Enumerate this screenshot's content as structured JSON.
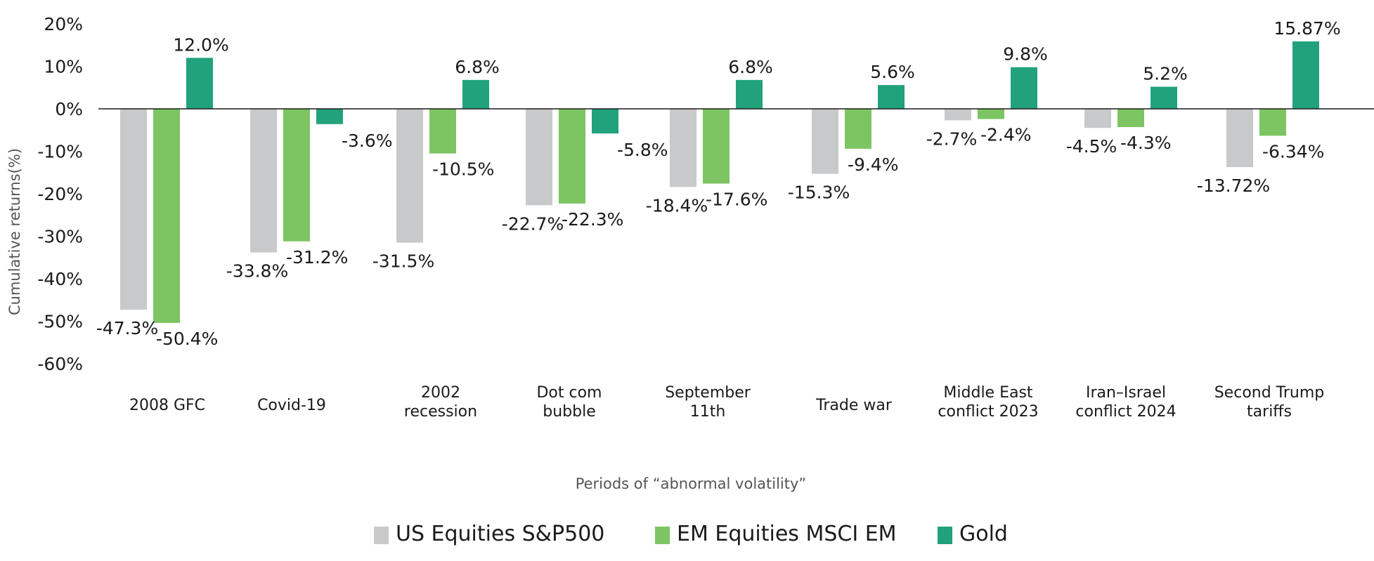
{
  "chart_data": {
    "type": "bar",
    "xlabel": "Periods of “abnormal volatility”",
    "ylabel": "Cumulative returns(%)",
    "ylim": [
      -60,
      20
    ],
    "yticks": [
      20,
      10,
      0,
      -10,
      -20,
      -30,
      -40,
      -50,
      -60
    ],
    "ytick_labels": [
      "20%",
      "10%",
      "0%",
      "-10%",
      "-20%",
      "-30%",
      "-40%",
      "-50%",
      "-60%"
    ],
    "grid": false,
    "legend_position": "bottom",
    "categories": [
      [
        "2008 GFC"
      ],
      [
        "Covid-19"
      ],
      [
        "2002",
        "recession"
      ],
      [
        "Dot com",
        "bubble"
      ],
      [
        "September",
        "11th"
      ],
      [
        "Trade war"
      ],
      [
        "Middle East",
        "conflict 2023"
      ],
      [
        "Iran–Israel",
        "conflict 2024"
      ],
      [
        "Second Trump",
        "tariffs"
      ]
    ],
    "series": [
      {
        "name": "US Equities S&P500",
        "color": "#c8c9cb",
        "values": [
          -47.3,
          -33.8,
          -31.5,
          -22.7,
          -18.4,
          -15.3,
          -2.7,
          -4.5,
          -13.72
        ],
        "labels": [
          "-47.3%",
          "-33.8%",
          "-31.5%",
          "-22.7%",
          "-18.4%",
          "-15.3%",
          "-2.7%",
          "-4.5%",
          "-13.72%"
        ]
      },
      {
        "name": "EM Equities MSCI EM",
        "color": "#7dc462",
        "values": [
          -50.4,
          -31.2,
          -10.5,
          -22.3,
          -17.6,
          -9.4,
          -2.4,
          -4.3,
          -6.34
        ],
        "labels": [
          "-50.4%",
          "-31.2%",
          "-10.5%",
          "-22.3%",
          "-17.6%",
          "-9.4%",
          "-2.4%",
          "-4.3%",
          "-6.34%"
        ]
      },
      {
        "name": "Gold",
        "color": "#21a27d",
        "values": [
          12.0,
          -3.6,
          6.8,
          -5.8,
          6.8,
          5.6,
          9.8,
          5.2,
          15.87
        ],
        "labels": [
          "12.0%",
          "-3.6%",
          "6.8%",
          "-5.8%",
          "6.8%",
          "5.6%",
          "9.8%",
          "5.2%",
          "15.87%"
        ]
      }
    ]
  }
}
